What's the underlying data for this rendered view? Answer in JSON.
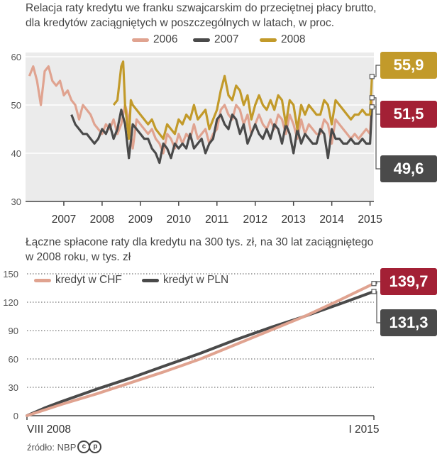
{
  "chart_data": [
    {
      "type": "line",
      "title": "Relacja raty kredytu we franku szwajcarskim  do przeciętnej płacy brutto, dla kredytów zaciągniętych w poszczególnych w latach, w proc.",
      "ylim": [
        30,
        60
      ],
      "yticks": [
        "60",
        "50",
        "40",
        "30"
      ],
      "xticks": [
        "2007",
        "2008",
        "2009",
        "2010",
        "2011",
        "2012",
        "2013",
        "2014",
        "2015"
      ],
      "legend": [
        "2006",
        "2007",
        "2008"
      ],
      "series": [
        {
          "name": "2006",
          "color": "#e0a390",
          "x": [
            2006.1,
            2006.2,
            2006.3,
            2006.4,
            2006.5,
            2006.6,
            2006.7,
            2006.8,
            2006.9,
            2007.0,
            2007.1,
            2007.2,
            2007.3,
            2007.4,
            2007.5,
            2007.6,
            2007.7,
            2007.8,
            2007.9,
            2008.0,
            2008.1,
            2008.2,
            2008.3,
            2008.4,
            2008.5,
            2008.6,
            2008.7,
            2008.8,
            2008.9,
            2009.0,
            2009.1,
            2009.2,
            2009.3,
            2009.4,
            2009.5,
            2009.6,
            2009.7,
            2009.8,
            2009.9,
            2010.0,
            2010.1,
            2010.2,
            2010.3,
            2010.4,
            2010.5,
            2010.6,
            2010.7,
            2010.8,
            2010.9,
            2011.0,
            2011.1,
            2011.2,
            2011.3,
            2011.4,
            2011.5,
            2011.6,
            2011.7,
            2011.8,
            2011.9,
            2012.0,
            2012.1,
            2012.2,
            2012.3,
            2012.4,
            2012.5,
            2012.6,
            2012.7,
            2012.8,
            2012.9,
            2013.0,
            2013.1,
            2013.2,
            2013.3,
            2013.4,
            2013.5,
            2013.6,
            2013.7,
            2013.8,
            2013.9,
            2014.0,
            2014.1,
            2014.2,
            2014.3,
            2014.4,
            2014.5,
            2014.6,
            2014.7,
            2014.8,
            2014.9,
            2015.0,
            2015.05
          ],
          "values": [
            56,
            58,
            55,
            50,
            57,
            58,
            55,
            54,
            55,
            52,
            53,
            51,
            50,
            47,
            50,
            49,
            48,
            46,
            45,
            44,
            46,
            45,
            47,
            44,
            46,
            50,
            47,
            41,
            47,
            46,
            45,
            44,
            45,
            43,
            42,
            40,
            44,
            43,
            41,
            44,
            42,
            44,
            43,
            46,
            43,
            44,
            45,
            42,
            44,
            45,
            49,
            50,
            48,
            47,
            50,
            49,
            46,
            48,
            44,
            46,
            48,
            46,
            45,
            47,
            45,
            48,
            47,
            44,
            48,
            46,
            43,
            47,
            44,
            46,
            45,
            44,
            44,
            47,
            46,
            42,
            47,
            46,
            45,
            44,
            43,
            44,
            43,
            44,
            45,
            44,
            51.5
          ]
        },
        {
          "name": "2007",
          "color": "#4a4a4a",
          "x": [
            2007.2,
            2007.3,
            2007.4,
            2007.5,
            2007.6,
            2007.7,
            2007.8,
            2007.9,
            2008.0,
            2008.1,
            2008.2,
            2008.3,
            2008.4,
            2008.5,
            2008.6,
            2008.7,
            2008.8,
            2008.9,
            2009.0,
            2009.1,
            2009.2,
            2009.3,
            2009.4,
            2009.5,
            2009.6,
            2009.7,
            2009.8,
            2009.9,
            2010.0,
            2010.1,
            2010.2,
            2010.3,
            2010.4,
            2010.5,
            2010.6,
            2010.7,
            2010.8,
            2010.9,
            2011.0,
            2011.1,
            2011.2,
            2011.3,
            2011.4,
            2011.5,
            2011.6,
            2011.7,
            2011.8,
            2011.9,
            2012.0,
            2012.1,
            2012.2,
            2012.3,
            2012.4,
            2012.5,
            2012.6,
            2012.7,
            2012.8,
            2012.9,
            2013.0,
            2013.1,
            2013.2,
            2013.3,
            2013.4,
            2013.5,
            2013.6,
            2013.7,
            2013.8,
            2013.9,
            2014.0,
            2014.1,
            2014.2,
            2014.3,
            2014.4,
            2014.5,
            2014.6,
            2014.7,
            2014.8,
            2014.9,
            2015.0,
            2015.05
          ],
          "values": [
            48,
            46,
            45,
            44,
            44,
            43,
            42,
            43,
            45,
            44,
            46,
            43,
            45,
            49,
            46,
            39,
            46,
            45,
            44,
            43,
            43,
            41,
            40,
            38,
            42,
            41,
            39,
            42,
            41,
            42,
            41,
            44,
            41,
            42,
            43,
            40,
            42,
            43,
            47,
            48,
            46,
            45,
            48,
            47,
            44,
            46,
            42,
            44,
            46,
            44,
            43,
            45,
            43,
            46,
            45,
            42,
            46,
            44,
            40,
            45,
            42,
            44,
            43,
            42,
            42,
            45,
            44,
            39,
            45,
            43,
            43,
            42,
            42,
            43,
            42,
            42,
            43,
            42,
            42,
            49.6
          ]
        },
        {
          "name": "2008",
          "color": "#c29a2a",
          "x": [
            2008.3,
            2008.4,
            2008.5,
            2008.55,
            2008.6,
            2008.7,
            2008.75,
            2008.8,
            2008.9,
            2009.0,
            2009.1,
            2009.2,
            2009.3,
            2009.4,
            2009.5,
            2009.6,
            2009.7,
            2009.8,
            2009.9,
            2010.0,
            2010.1,
            2010.2,
            2010.3,
            2010.4,
            2010.5,
            2010.6,
            2010.7,
            2010.8,
            2010.9,
            2011.0,
            2011.1,
            2011.2,
            2011.3,
            2011.4,
            2011.5,
            2011.6,
            2011.7,
            2011.8,
            2011.9,
            2012.0,
            2012.1,
            2012.2,
            2012.3,
            2012.4,
            2012.5,
            2012.6,
            2012.7,
            2012.8,
            2012.9,
            2013.0,
            2013.1,
            2013.2,
            2013.3,
            2013.4,
            2013.5,
            2013.6,
            2013.7,
            2013.8,
            2013.9,
            2014.0,
            2014.1,
            2014.2,
            2014.3,
            2014.4,
            2014.5,
            2014.6,
            2014.7,
            2014.8,
            2014.9,
            2015.0,
            2015.05
          ],
          "values": [
            50,
            51,
            58,
            59,
            50,
            43,
            51,
            50,
            49,
            48,
            47,
            46,
            47,
            45,
            44,
            43,
            46,
            45,
            44,
            47,
            46,
            48,
            47,
            50,
            47,
            48,
            49,
            45,
            47,
            49,
            53,
            56,
            52,
            51,
            54,
            53,
            50,
            52,
            47,
            50,
            52,
            50,
            49,
            51,
            49,
            52,
            51,
            46,
            51,
            50,
            45,
            50,
            48,
            50,
            49,
            48,
            48,
            51,
            50,
            46,
            51,
            50,
            49,
            48,
            47,
            48,
            48,
            49,
            48,
            48,
            55.9
          ]
        }
      ],
      "end_labels": [
        {
          "series": "2008",
          "value": "55,9",
          "color": "#c29a2a"
        },
        {
          "series": "2006",
          "value": "51,5",
          "color": "#a32035"
        },
        {
          "series": "2007",
          "value": "49,6",
          "color": "#4a4a4a"
        }
      ]
    },
    {
      "type": "line",
      "title": "Łączne spłacone raty dla kredytu na 300 tys. zł, na 30 lat zaciągniętego w 2008 roku, w tys. zł",
      "ylim": [
        0,
        150
      ],
      "yticks": [
        "150",
        "120",
        "90",
        "60",
        "30",
        "0"
      ],
      "xticks": [
        "VIII 2008",
        "I 2015"
      ],
      "legend": [
        "kredyt w CHF",
        "kredyt w PLN"
      ],
      "series": [
        {
          "name": "kredyt w PLN",
          "color": "#4a4a4a",
          "x": [
            0,
            0.05,
            0.1,
            0.2,
            0.3,
            0.4,
            0.5,
            0.6,
            0.7,
            0.8,
            0.9,
            1.0
          ],
          "values": [
            0,
            8,
            15,
            28,
            40,
            53,
            66,
            80,
            93,
            105,
            118,
            131.3
          ]
        },
        {
          "name": "kredyt w CHF",
          "color": "#e0a390",
          "x": [
            0,
            0.05,
            0.1,
            0.2,
            0.3,
            0.4,
            0.5,
            0.6,
            0.7,
            0.8,
            0.9,
            1.0
          ],
          "values": [
            0,
            6,
            12,
            23,
            35,
            47,
            60,
            75,
            90,
            105,
            122,
            139.7
          ]
        }
      ],
      "end_labels": [
        {
          "series": "kredyt w CHF",
          "value": "139,7",
          "color": "#a32035"
        },
        {
          "series": "kredyt w PLN",
          "value": "131,3",
          "color": "#4a4a4a"
        }
      ]
    }
  ],
  "source": {
    "label": "źródło: NBP",
    "cc_c": "c",
    "cc_p": "p"
  }
}
